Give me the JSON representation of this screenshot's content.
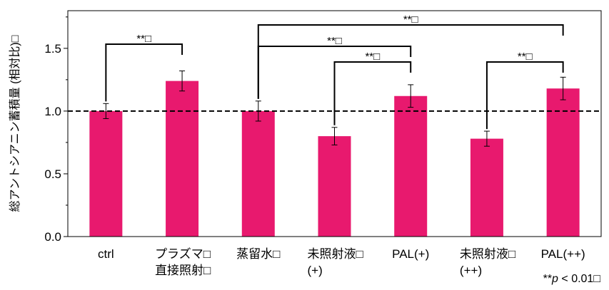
{
  "chart_data": {
    "type": "bar",
    "ylabel": "総アントシアニン蓄積量 (相対比)□",
    "ylim": [
      0,
      1.8
    ],
    "yticks": [
      "0.0",
      "0.5",
      "1.0",
      "1.5"
    ],
    "ytick_values": [
      0,
      0.5,
      1.0,
      1.5
    ],
    "grid": false,
    "reference_line": 1.0,
    "categories": [
      [
        "ctrl"
      ],
      [
        "プラズマ□",
        "直接照射□"
      ],
      [
        "蒸留水□"
      ],
      [
        "未照射液□",
        "(+)"
      ],
      [
        "PAL(+)"
      ],
      [
        "未照射液□",
        "(++)"
      ],
      [
        "PAL(++)"
      ]
    ],
    "values": [
      1.0,
      1.24,
      1.0,
      0.8,
      1.12,
      0.78,
      1.18
    ],
    "errors": [
      0.06,
      0.08,
      0.08,
      0.07,
      0.09,
      0.06,
      0.09
    ],
    "bar_color": "#e8196e",
    "significance": [
      {
        "from": 0,
        "to": 1,
        "label": "**□"
      },
      {
        "from": 2,
        "to": 4,
        "label": "**□"
      },
      {
        "from": 3,
        "to": 4,
        "label": "**□"
      },
      {
        "from": 2,
        "to": 6,
        "label": "**□"
      },
      {
        "from": 5,
        "to": 6,
        "label": "**□"
      }
    ],
    "footnote": {
      "stars": "**",
      "p": "p",
      "rest": " < 0.01□"
    }
  }
}
